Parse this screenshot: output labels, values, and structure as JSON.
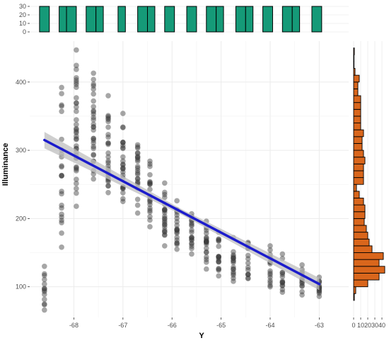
{
  "chart_data": {
    "type": "scatter",
    "title": "",
    "xlabel": "Y",
    "ylabel": "Illuminance",
    "xlim": [
      -68.9,
      -62.4
    ],
    "ylim": [
      55,
      460
    ],
    "x_ticks": [
      -68,
      -67,
      -66,
      -65,
      -64,
      -63
    ],
    "x_tick_labels": [
      "-68",
      "-67",
      "-66",
      "-65",
      "-64",
      "-63"
    ],
    "y_ticks": [
      100,
      200,
      300,
      400
    ],
    "y_tick_labels": [
      "100",
      "200",
      "300",
      "400"
    ],
    "grid": true,
    "colors": {
      "points": "#3a3a3a",
      "trend_line": "#1c1ccc",
      "confidence_band": "#bfbfbf",
      "top_histogram": "#159a78",
      "right_histogram": "#d9661c",
      "bar_outline": "#000000",
      "grid": "#ebebeb"
    },
    "scatter_columns": [
      {
        "x": -68.6,
        "y_min": 66,
        "y_max": 130,
        "n": 14
      },
      {
        "x": -68.25,
        "y_min": 158,
        "y_max": 392,
        "n": 24
      },
      {
        "x": -67.95,
        "y_min": 218,
        "y_max": 447,
        "n": 38
      },
      {
        "x": -67.6,
        "y_min": 258,
        "y_max": 413,
        "n": 30
      },
      {
        "x": -67.3,
        "y_min": 238,
        "y_max": 380,
        "n": 28
      },
      {
        "x": -67.0,
        "y_min": 225,
        "y_max": 354,
        "n": 26
      },
      {
        "x": -66.7,
        "y_min": 208,
        "y_max": 308,
        "n": 24
      },
      {
        "x": -66.45,
        "y_min": 188,
        "y_max": 284,
        "n": 22
      },
      {
        "x": -66.15,
        "y_min": 160,
        "y_max": 252,
        "n": 24
      },
      {
        "x": -65.9,
        "y_min": 155,
        "y_max": 226,
        "n": 20
      },
      {
        "x": -65.6,
        "y_min": 148,
        "y_max": 207,
        "n": 20
      },
      {
        "x": -65.3,
        "y_min": 126,
        "y_max": 196,
        "n": 20
      },
      {
        "x": -65.05,
        "y_min": 116,
        "y_max": 180,
        "n": 18
      },
      {
        "x": -64.75,
        "y_min": 108,
        "y_max": 172,
        "n": 18
      },
      {
        "x": -64.45,
        "y_min": 112,
        "y_max": 165,
        "n": 16
      },
      {
        "x": -64.0,
        "y_min": 100,
        "y_max": 160,
        "n": 16
      },
      {
        "x": -63.75,
        "y_min": 92,
        "y_max": 148,
        "n": 14
      },
      {
        "x": -63.35,
        "y_min": 88,
        "y_max": 132,
        "n": 14
      },
      {
        "x": -63.0,
        "y_min": 86,
        "y_max": 114,
        "n": 14
      }
    ],
    "trend_line": {
      "x": [
        -68.6,
        -63.0
      ],
      "y": [
        315,
        104
      ]
    },
    "confidence_band_halfwidth": [
      12,
      4,
      9
    ],
    "top_histogram": {
      "y_ticks": [
        0,
        10,
        20,
        30
      ],
      "y_tick_labels": [
        "0",
        "10",
        "20",
        "30"
      ],
      "ylim": [
        0,
        30
      ],
      "bins": [
        {
          "x0": -68.7,
          "x1": -68.5,
          "count": 30
        },
        {
          "x0": -68.3,
          "x1": -68.15,
          "count": 30
        },
        {
          "x0": -68.15,
          "x1": -67.95,
          "count": 30
        },
        {
          "x0": -67.75,
          "x1": -67.55,
          "count": 30
        },
        {
          "x0": -67.55,
          "x1": -67.4,
          "count": 30
        },
        {
          "x0": -67.1,
          "x1": -66.95,
          "count": 30
        },
        {
          "x0": -66.7,
          "x1": -66.5,
          "count": 30
        },
        {
          "x0": -66.5,
          "x1": -66.35,
          "count": 30
        },
        {
          "x0": -66.15,
          "x1": -65.95,
          "count": 30
        },
        {
          "x0": -65.7,
          "x1": -65.5,
          "count": 30
        },
        {
          "x0": -65.3,
          "x1": -65.1,
          "count": 30
        },
        {
          "x0": -65.1,
          "x1": -64.95,
          "count": 30
        },
        {
          "x0": -64.7,
          "x1": -64.5,
          "count": 30
        },
        {
          "x0": -64.5,
          "x1": -64.35,
          "count": 30
        },
        {
          "x0": -64.15,
          "x1": -63.95,
          "count": 30
        },
        {
          "x0": -63.75,
          "x1": -63.55,
          "count": 30
        },
        {
          "x0": -63.55,
          "x1": -63.4,
          "count": 30
        },
        {
          "x0": -63.15,
          "x1": -62.95,
          "count": 30
        }
      ]
    },
    "right_histogram": {
      "x_ticks": [
        0,
        10,
        20,
        30,
        40
      ],
      "x_tick_labels": [
        "0",
        "10",
        "20",
        "30",
        "40"
      ],
      "xlim": [
        0,
        45
      ],
      "bin_width": 10,
      "bins": [
        {
          "y": 85,
          "count": 1
        },
        {
          "y": 95,
          "count": 3
        },
        {
          "y": 105,
          "count": 20
        },
        {
          "y": 115,
          "count": 36
        },
        {
          "y": 125,
          "count": 44
        },
        {
          "y": 135,
          "count": 36
        },
        {
          "y": 145,
          "count": 42
        },
        {
          "y": 155,
          "count": 26
        },
        {
          "y": 165,
          "count": 22
        },
        {
          "y": 175,
          "count": 20
        },
        {
          "y": 185,
          "count": 18
        },
        {
          "y": 195,
          "count": 15
        },
        {
          "y": 205,
          "count": 16
        },
        {
          "y": 215,
          "count": 16
        },
        {
          "y": 225,
          "count": 14
        },
        {
          "y": 235,
          "count": 8
        },
        {
          "y": 245,
          "count": 4
        },
        {
          "y": 255,
          "count": 14
        },
        {
          "y": 265,
          "count": 14
        },
        {
          "y": 275,
          "count": 14
        },
        {
          "y": 285,
          "count": 16
        },
        {
          "y": 295,
          "count": 14
        },
        {
          "y": 305,
          "count": 12
        },
        {
          "y": 315,
          "count": 12
        },
        {
          "y": 325,
          "count": 14
        },
        {
          "y": 335,
          "count": 10
        },
        {
          "y": 345,
          "count": 10
        },
        {
          "y": 355,
          "count": 10
        },
        {
          "y": 365,
          "count": 10
        },
        {
          "y": 375,
          "count": 10
        },
        {
          "y": 385,
          "count": 6
        },
        {
          "y": 395,
          "count": 6
        },
        {
          "y": 405,
          "count": 8
        },
        {
          "y": 415,
          "count": 2
        },
        {
          "y": 425,
          "count": 0
        },
        {
          "y": 435,
          "count": 0
        },
        {
          "y": 445,
          "count": 1
        }
      ]
    }
  }
}
